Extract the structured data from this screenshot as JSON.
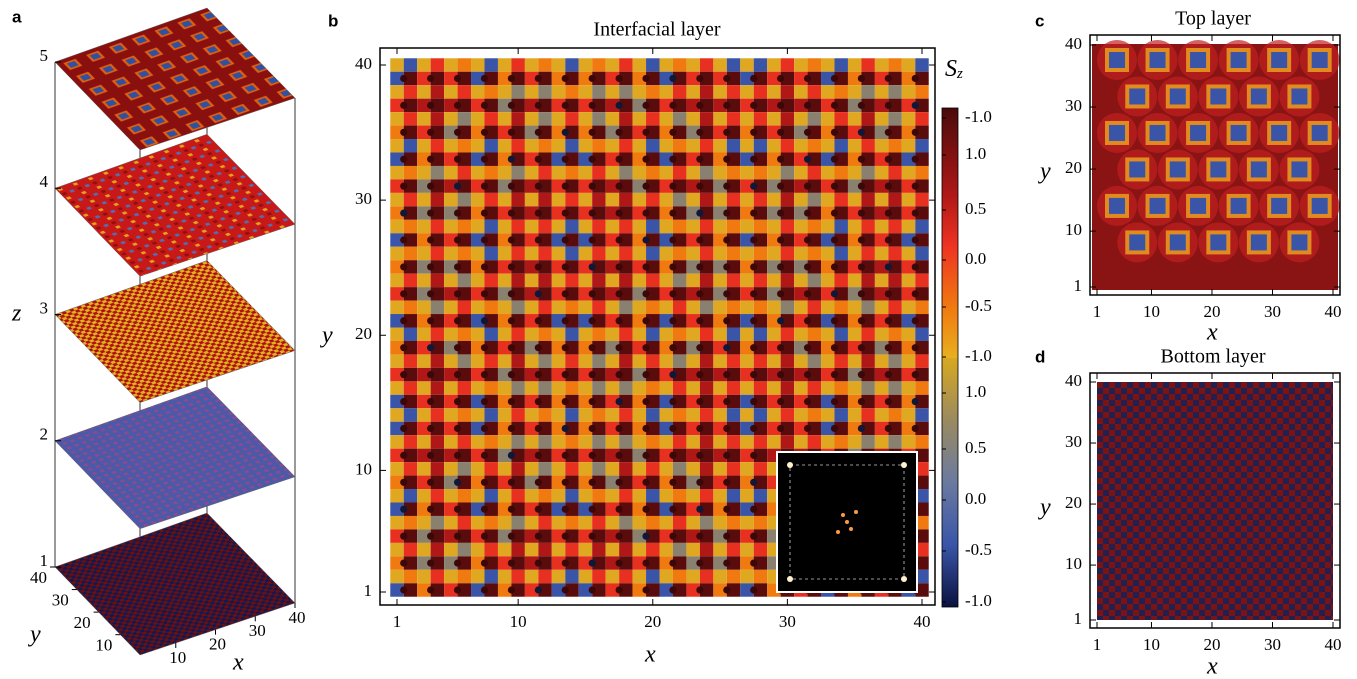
{
  "panels": [
    {
      "label": "a",
      "z_label": "z",
      "y_label": "y",
      "x_label": "x",
      "zticks": [
        5,
        4,
        3,
        2,
        1
      ],
      "yticks": [
        40,
        30,
        20,
        10
      ],
      "xticks": [
        10,
        20,
        30,
        40
      ],
      "lim": [
        1,
        40
      ],
      "zlim": [
        1,
        5
      ]
    },
    {
      "label": "b",
      "title": "Interfacial layer",
      "x_label": "x",
      "y_label": "y",
      "xlim": [
        1,
        40
      ],
      "ylim": [
        1,
        40
      ],
      "xticks": [
        1,
        10,
        20,
        30,
        40
      ],
      "yticks": [
        1,
        10,
        20,
        30,
        40
      ],
      "colorbar_label": {
        "main": "S",
        "sub": "z"
      },
      "colorbar_labels": [
        "-1.0",
        "1.0",
        "0.5",
        "0.0",
        "-0.5",
        "-1.0",
        "1.0",
        "0.5",
        "0.0",
        "-0.5",
        "-1.0"
      ]
    },
    {
      "label": "c",
      "title": "Top layer",
      "x_label": "x",
      "y_label": "y",
      "xlim": [
        1,
        40
      ],
      "ylim": [
        1,
        40
      ],
      "xticks": [
        1,
        10,
        20,
        30,
        40
      ],
      "yticks": [
        1,
        10,
        20,
        30,
        40
      ]
    },
    {
      "label": "d",
      "title": "Bottom layer",
      "x_label": "x",
      "y_label": "y",
      "xlim": [
        1,
        40
      ],
      "ylim": [
        1,
        40
      ],
      "xticks": [
        1,
        10,
        20,
        30,
        40
      ],
      "yticks": [
        1,
        10,
        20,
        30,
        40
      ]
    }
  ]
}
